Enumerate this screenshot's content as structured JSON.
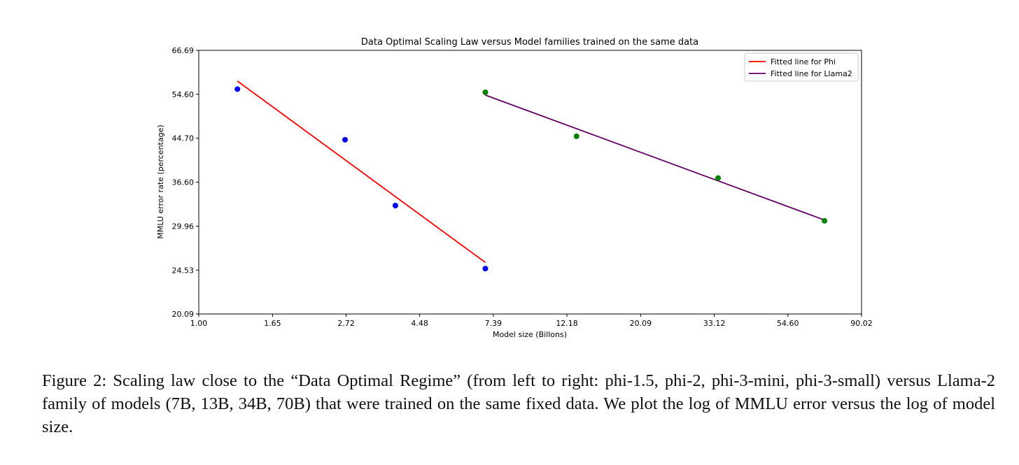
{
  "chart_data": {
    "type": "scatter",
    "title": "Data Optimal Scaling Law versus Model families trained on the same data",
    "xlabel": "Model size (Billons)",
    "ylabel": "MMLU error rate (percentage)",
    "x_scale": "log",
    "y_scale": "log",
    "xlim": [
      1.0,
      90.02
    ],
    "ylim": [
      20.09,
      66.69
    ],
    "x_ticks": [
      1.0,
      1.65,
      2.72,
      4.48,
      7.39,
      12.18,
      20.09,
      33.12,
      54.6,
      90.02
    ],
    "x_tick_labels": [
      "1.00",
      "1.65",
      "2.72",
      "4.48",
      "7.39",
      "12.18",
      "20.09",
      "33.12",
      "54.60",
      "90.02"
    ],
    "y_ticks": [
      20.09,
      24.53,
      29.96,
      36.6,
      44.7,
      54.6,
      66.69
    ],
    "y_tick_labels": [
      "20.09",
      "24.53",
      "29.96",
      "36.60",
      "44.70",
      "54.60",
      "66.69"
    ],
    "grid": false,
    "legend_position": "top-right",
    "series": [
      {
        "kind": "points",
        "color": "#0000ff",
        "x": [
          1.3,
          2.7,
          3.8,
          7.0
        ],
        "y": [
          55.9,
          44.4,
          32.9,
          24.7
        ]
      },
      {
        "kind": "points",
        "color": "#008000",
        "x": [
          7.0,
          13.0,
          34.0,
          70.0
        ],
        "y": [
          55.1,
          45.1,
          37.3,
          30.7
        ]
      },
      {
        "kind": "line",
        "name": "Fitted line for Phi",
        "color": "#ff0000",
        "x": [
          1.3,
          7.0
        ],
        "y": [
          58.0,
          25.4
        ]
      },
      {
        "kind": "line",
        "name": "Fitted line for Llama2",
        "color": "#660066",
        "x": [
          7.0,
          70.0
        ],
        "y": [
          54.4,
          30.8
        ]
      }
    ]
  },
  "caption": "Figure 2: Scaling law close to the “Data Optimal Regime” (from left to right: phi-1.5, phi-2, phi-3-mini, phi-3-small) versus Llama-2 family of models (7B, 13B, 34B, 70B) that were trained on the same fixed data. We plot the log of MMLU error versus the log of model size."
}
